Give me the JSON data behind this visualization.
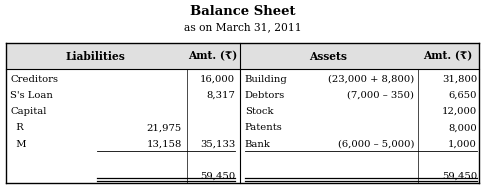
{
  "title": "Balance Sheet",
  "subtitle": "as on March 31, 2011",
  "header_liabilities": "Liabilities",
  "header_amt_l": "Amt. (₹)",
  "header_assets": "Assets",
  "header_amt_r": "Amt. (₹)",
  "liabilities_rows": [
    {
      "col1": "Creditors",
      "col2": "",
      "col3": "16,000"
    },
    {
      "col1": "S's Loan",
      "col2": "",
      "col3": "8,317"
    },
    {
      "col1": "Capital",
      "col2": "",
      "col3": ""
    },
    {
      "col1": "  R",
      "col2": "21,975",
      "col3": ""
    },
    {
      "col1": "  M",
      "col2": "13,158",
      "col3": "35,133"
    },
    {
      "col1": "",
      "col2": "",
      "col3": ""
    },
    {
      "col1": "",
      "col2": "",
      "col3": "59,450"
    }
  ],
  "assets_rows": [
    {
      "col1": "Building",
      "col2": "(23,000 + 8,800)",
      "col3": "31,800"
    },
    {
      "col1": "Debtors",
      "col2": "(7,000 – 350)",
      "col3": "6,650"
    },
    {
      "col1": "Stock",
      "col2": "",
      "col3": "12,000"
    },
    {
      "col1": "Patents",
      "col2": "",
      "col3": "8,000"
    },
    {
      "col1": "Bank",
      "col2": "(6,000 – 5,000)",
      "col3": "1,000"
    },
    {
      "col1": "",
      "col2": "",
      "col3": ""
    },
    {
      "col1": "",
      "col2": "",
      "col3": "59,450"
    }
  ],
  "bg_color": "#ffffff",
  "header_bg": "#e0e0e0",
  "line_color": "#000000",
  "font_size": 7.2,
  "title_font_size": 9.5
}
